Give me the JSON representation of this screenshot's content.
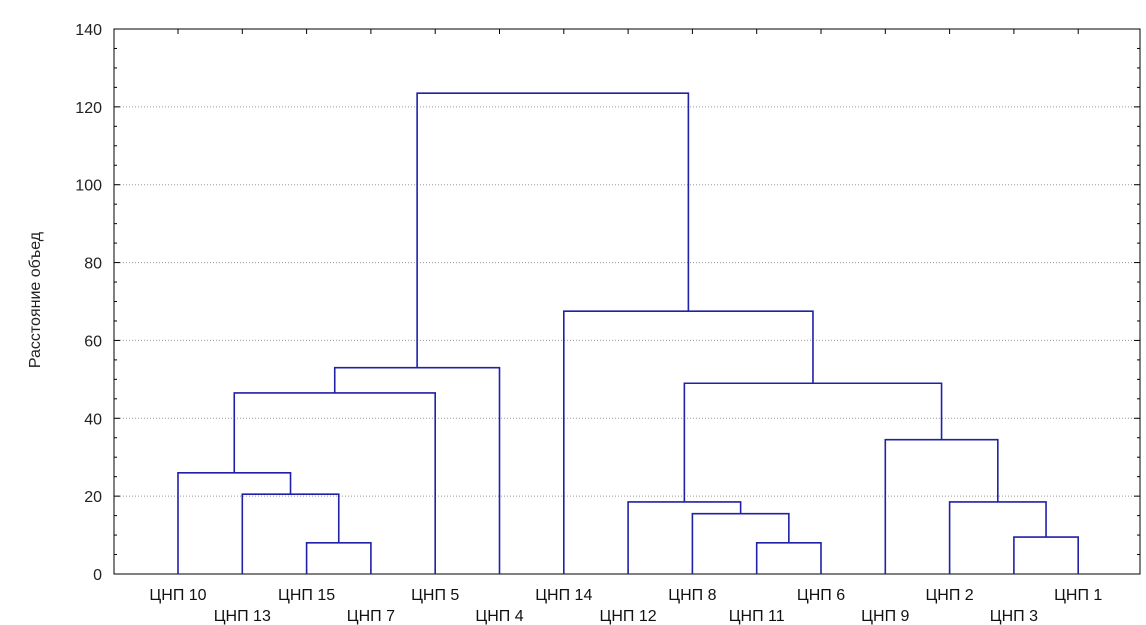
{
  "chart_data": {
    "type": "dendrogram",
    "title": "",
    "ylabel": "Расстояние объед",
    "xlabel": "",
    "ylim": [
      0,
      140
    ],
    "yticks": [
      0,
      20,
      40,
      60,
      80,
      100,
      120,
      140
    ],
    "grid": true,
    "line_color": "#2020a8",
    "leaves": [
      "ЦНП 10",
      "ЦНП 13",
      "ЦНП 15",
      "ЦНП 7",
      "ЦНП 5",
      "ЦНП 4",
      "ЦНП 14",
      "ЦНП 12",
      "ЦНП 8",
      "ЦНП 11",
      "ЦНП 6",
      "ЦНП 9",
      "ЦНП 2",
      "ЦНП 3",
      "ЦНП 1"
    ],
    "merges": [
      {
        "id": 1,
        "left": 3,
        "right": 4,
        "height": 8
      },
      {
        "id": 2,
        "left": 2,
        "right": "c1",
        "height": 20.5
      },
      {
        "id": 3,
        "left": 1,
        "right": "c2",
        "height": 26
      },
      {
        "id": 4,
        "left": "c3",
        "right": 5,
        "height": 46.5
      },
      {
        "id": 5,
        "left": "c4",
        "right": 6,
        "height": 53
      },
      {
        "id": 6,
        "left": 10,
        "right": 11,
        "height": 8
      },
      {
        "id": 7,
        "left": 9,
        "right": "c6",
        "height": 15.5
      },
      {
        "id": 8,
        "left": 8,
        "right": "c7",
        "height": 18.5
      },
      {
        "id": 9,
        "left": 14,
        "right": 15,
        "height": 9.5
      },
      {
        "id": 10,
        "left": 13,
        "right": "c9",
        "height": 18.5
      },
      {
        "id": 11,
        "left": 12,
        "right": "c10",
        "height": 34.5
      },
      {
        "id": 12,
        "left": "c8",
        "right": "c11",
        "height": 49
      },
      {
        "id": 13,
        "left": 7,
        "right": "c12",
        "height": 67.5
      },
      {
        "id": 14,
        "left": "c5",
        "right": "c13",
        "height": 123.5
      }
    ]
  }
}
